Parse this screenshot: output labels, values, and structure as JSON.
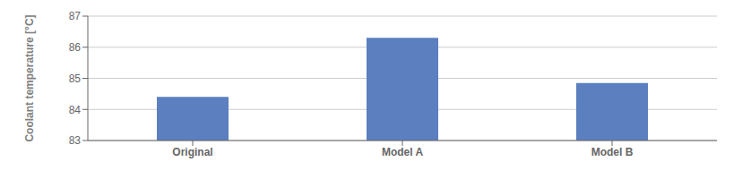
{
  "chart_data": {
    "type": "bar",
    "categories": [
      "Original",
      "Model A",
      "Model B"
    ],
    "values": [
      84.4,
      86.3,
      84.85
    ],
    "color": "#5b7fbf",
    "ylabel": "Coolant temperature [°C]",
    "ylim": [
      83,
      87
    ],
    "yticks": [
      83,
      84,
      85,
      86,
      87
    ],
    "grid": true
  }
}
